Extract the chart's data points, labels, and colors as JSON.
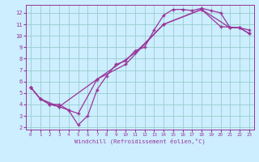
{
  "xlabel": "Windchill (Refroidissement éolien,°C)",
  "bg_color": "#cceeff",
  "grid_color": "#99cccc",
  "line_color": "#993399",
  "xlim": [
    -0.5,
    23.5
  ],
  "ylim": [
    1.8,
    12.7
  ],
  "xticks": [
    0,
    1,
    2,
    3,
    4,
    5,
    6,
    7,
    8,
    9,
    10,
    11,
    12,
    13,
    14,
    15,
    16,
    17,
    18,
    19,
    20,
    21,
    22,
    23
  ],
  "yticks": [
    2,
    3,
    4,
    5,
    6,
    7,
    8,
    9,
    10,
    11,
    12
  ],
  "line1_x": [
    0,
    1,
    2,
    3,
    4,
    5,
    6,
    7,
    8,
    9,
    10,
    11,
    12,
    13,
    14,
    15,
    16,
    17,
    18,
    19,
    20,
    21,
    22,
    23
  ],
  "line1_y": [
    5.5,
    4.5,
    4.0,
    4.0,
    3.5,
    2.2,
    3.0,
    5.3,
    6.5,
    7.5,
    7.8,
    8.7,
    9.0,
    10.5,
    11.8,
    12.3,
    12.3,
    12.2,
    12.4,
    12.2,
    12.0,
    10.7,
    10.7,
    10.5
  ],
  "line2_x": [
    0,
    1,
    2,
    3,
    4,
    5,
    7,
    10,
    14,
    18,
    20,
    22,
    23
  ],
  "line2_y": [
    5.5,
    4.5,
    4.0,
    3.8,
    3.5,
    3.2,
    6.2,
    7.5,
    11.0,
    12.3,
    10.8,
    10.7,
    10.2
  ],
  "line3_x": [
    0,
    1,
    3,
    7,
    11,
    14,
    18,
    21,
    22,
    23
  ],
  "line3_y": [
    5.5,
    4.5,
    3.8,
    6.2,
    8.5,
    11.0,
    12.3,
    10.7,
    10.7,
    10.2
  ]
}
